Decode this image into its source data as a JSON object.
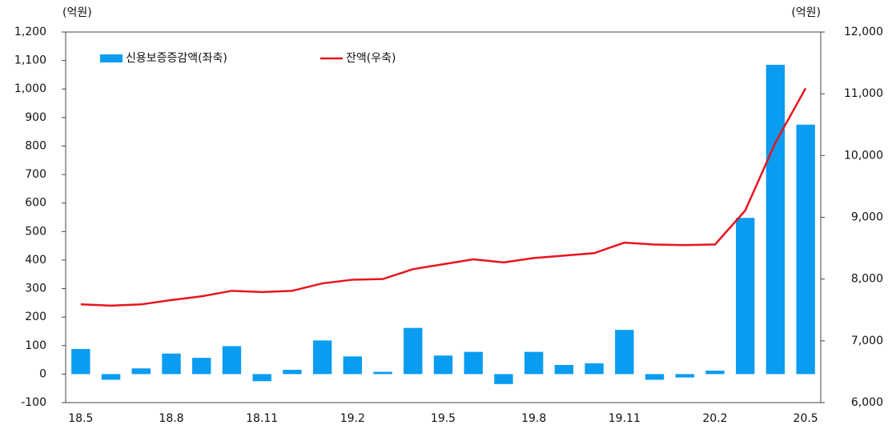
{
  "chart_data": {
    "type": "bar+line",
    "y_unit": "(억원)",
    "y2_unit": "(억원)",
    "categories": [
      "18.5",
      null,
      null,
      "18.8",
      null,
      null,
      "18.11",
      null,
      null,
      "19.2",
      null,
      null,
      "19.5",
      null,
      null,
      "19.8",
      null,
      null,
      "19.11",
      null,
      null,
      "20.2",
      null,
      null,
      "20.5"
    ],
    "series": [
      {
        "name": "신용보증증감액(좌축)",
        "type": "bar",
        "color": "#0a9cf0",
        "axis": "y",
        "values": [
          88,
          -20,
          20,
          72,
          57,
          98,
          -25,
          15,
          118,
          62,
          8,
          162,
          65,
          78,
          -35,
          78,
          32,
          38,
          155,
          -20,
          -12,
          12,
          548,
          1085,
          875
        ]
      },
      {
        "name": "잔액(우축)",
        "type": "line",
        "color": "#e8141e",
        "axis": "y2",
        "values": [
          7590,
          7570,
          7590,
          7660,
          7720,
          7810,
          7790,
          7810,
          7930,
          7990,
          8000,
          8160,
          8240,
          8320,
          8270,
          8340,
          8380,
          8420,
          8590,
          8560,
          8550,
          8560,
          9110,
          10210,
          11090
        ]
      }
    ],
    "ylim": [
      -100,
      1200
    ],
    "yticks": [
      -100,
      0,
      100,
      200,
      300,
      400,
      500,
      600,
      700,
      800,
      900,
      {
        "value": 1000,
        "label": "1,000"
      },
      {
        "value": 1100,
        "label": "1,100"
      },
      {
        "value": 1200,
        "label": "1,200"
      }
    ],
    "y2lim": [
      6000,
      12000
    ],
    "y2ticks": [
      {
        "value": 6000,
        "label": "6,000"
      },
      {
        "value": 7000,
        "label": "7,000"
      },
      {
        "value": 8000,
        "label": "8,000"
      },
      {
        "value": 9000,
        "label": "9,000"
      },
      {
        "value": 10000,
        "label": "10,000"
      },
      {
        "value": 11000,
        "label": "11,000"
      },
      {
        "value": 12000,
        "label": "12,000"
      }
    ],
    "legend": "upper left",
    "grid": false
  }
}
